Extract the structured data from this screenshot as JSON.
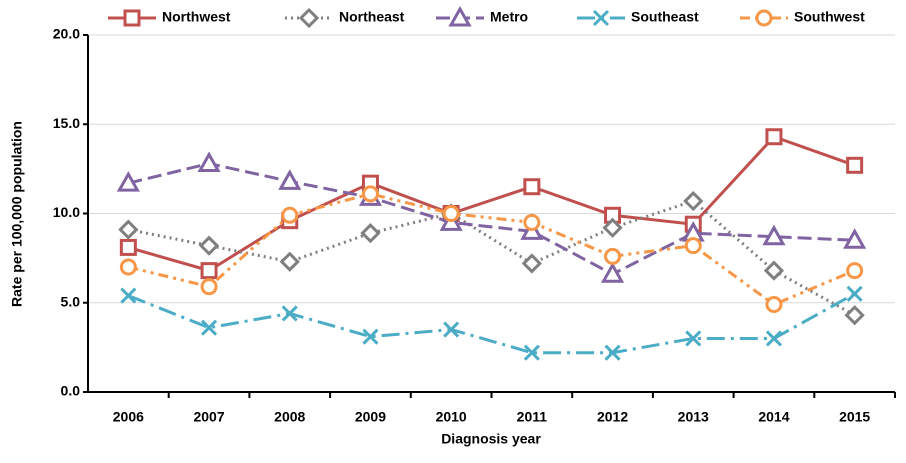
{
  "chart_data": {
    "type": "line",
    "x_label": "Diagnosis year",
    "y_label": "Rate per 100,000 population",
    "categories": [
      "2006",
      "2007",
      "2008",
      "2009",
      "2010",
      "2011",
      "2012",
      "2013",
      "2014",
      "2015"
    ],
    "ylim": [
      0,
      20
    ],
    "yticks": [
      {
        "value": 0,
        "label": "0.0"
      },
      {
        "value": 5,
        "label": "5.0"
      },
      {
        "value": 10,
        "label": "10.0"
      },
      {
        "value": 15,
        "label": "15.0"
      },
      {
        "value": 20,
        "label": "20.0"
      }
    ],
    "grid": true,
    "legend": "top",
    "series": [
      {
        "name": "Northwest",
        "color": "#c0504d",
        "values": [
          8.1,
          6.8,
          9.6,
          11.7,
          10.0,
          11.5,
          9.9,
          9.4,
          14.3,
          12.7
        ]
      },
      {
        "name": "Northeast",
        "color": "#7f7f7f",
        "values": [
          9.1,
          8.2,
          7.3,
          8.9,
          10.0,
          7.2,
          9.2,
          10.7,
          6.8,
          4.3
        ]
      },
      {
        "name": "Metro",
        "color": "#8064a2",
        "values": [
          11.7,
          12.8,
          11.8,
          10.9,
          9.5,
          9.0,
          6.6,
          8.9,
          8.7,
          8.5
        ]
      },
      {
        "name": "Southeast",
        "color": "#4bacc6",
        "values": [
          5.4,
          3.6,
          4.4,
          3.1,
          3.5,
          2.2,
          2.2,
          3.0,
          3.0,
          5.5
        ]
      },
      {
        "name": "Southwest",
        "color": "#f79646",
        "values": [
          7.0,
          5.9,
          9.9,
          11.1,
          10.0,
          9.5,
          7.6,
          8.2,
          4.9,
          6.8
        ]
      }
    ]
  }
}
